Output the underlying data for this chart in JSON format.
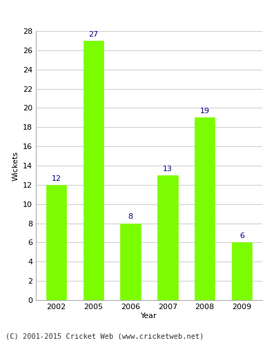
{
  "years": [
    "2002",
    "2005",
    "2006",
    "2007",
    "2008",
    "2009"
  ],
  "wickets": [
    12,
    27,
    8,
    13,
    19,
    6
  ],
  "bar_color": "#7CFC00",
  "bar_edge_color": "#7CFC00",
  "label_color": "#00008B",
  "xlabel": "Year",
  "ylabel": "Wickets",
  "ylim": [
    0,
    28
  ],
  "yticks": [
    0,
    2,
    4,
    6,
    8,
    10,
    12,
    14,
    16,
    18,
    20,
    22,
    24,
    26,
    28
  ],
  "grid_color": "#cccccc",
  "bg_color": "#ffffff",
  "footnote": "(C) 2001-2015 Cricket Web (www.cricketweb.net)",
  "label_fontsize": 8,
  "axis_fontsize": 8,
  "footnote_fontsize": 7.5
}
